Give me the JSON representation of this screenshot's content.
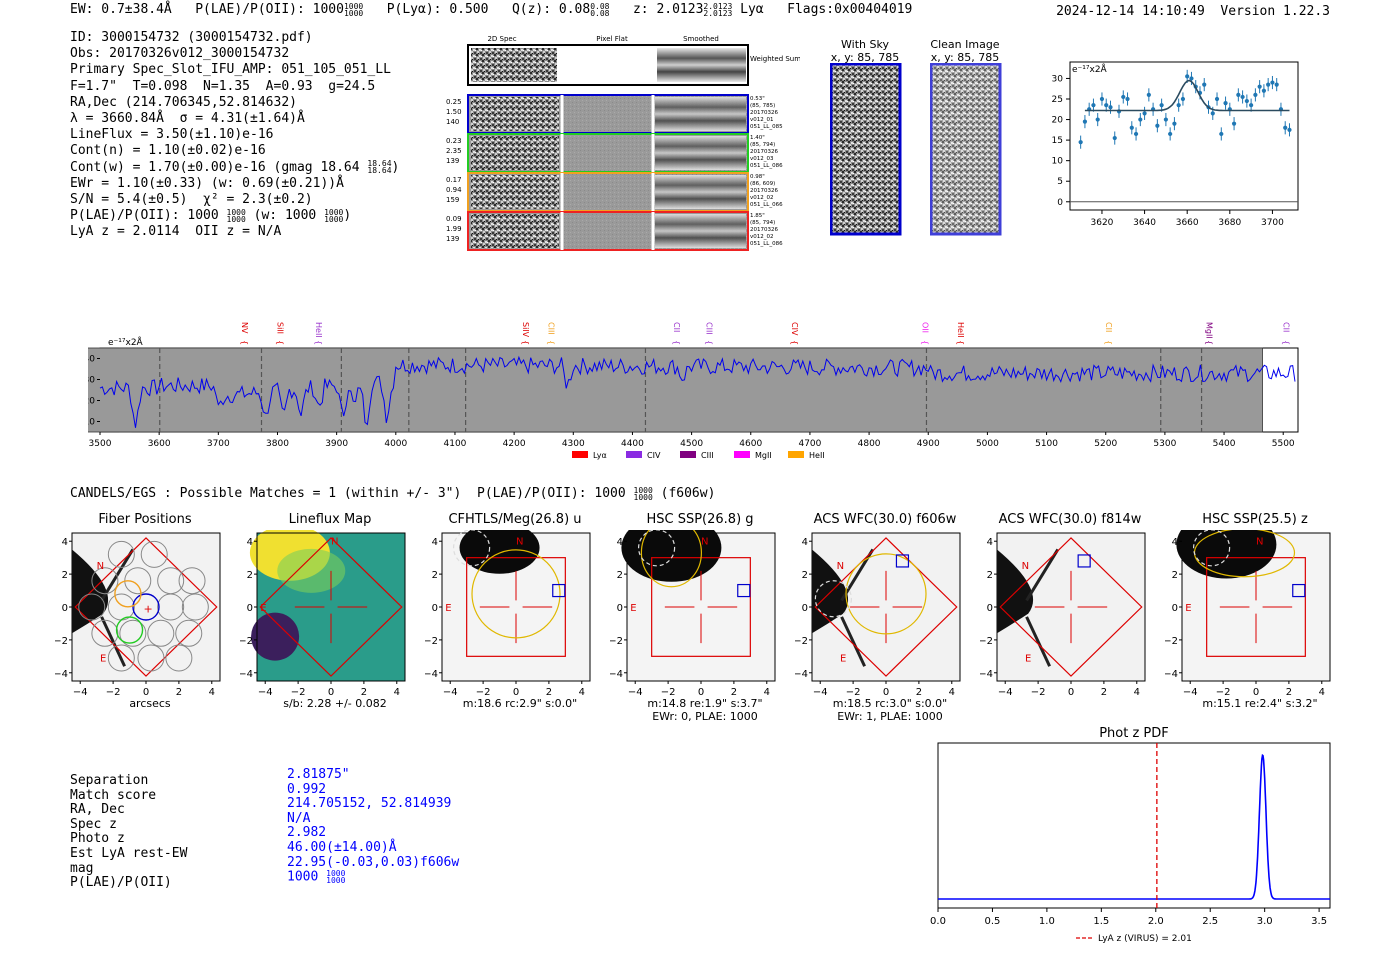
{
  "header": {
    "left": "EW: 0.7±38.4Å   P(LAE)/P(OII): 1000   P(Lyα): 0.500   Q(z): 0.08   z: 2.0123   Lyα   Flags:0x00404019",
    "ew": "EW: 0.7±38.4Å",
    "plae_label": "P(LAE)/P(OII): 1000",
    "plae_frac_top": "1000",
    "plae_frac_bot": "1000",
    "plya": "P(Lyα): 0.500",
    "qz_label": "Q(z): 0.08",
    "qz_top": "0.08",
    "qz_bot": "0.08",
    "z_label": "z: 2.0123",
    "z_top": "2.0123",
    "z_bot": "2.0123",
    "line": "Lyα",
    "flags": "Flags:0x00404019",
    "right": "2024-12-14 14:10:49  Version 1.22.3"
  },
  "info": {
    "id": "ID: 3000154732 (3000154732.pdf)",
    "obs": "Obs: 20170326v012_3000154732",
    "primary": "Primary Spec_Slot_IFU_AMP: 051_105_051_LL",
    "fiber": "F=1.7\"  T=0.098  N=1.35  A=0.93  g=24.5",
    "radec": "RA,Dec (214.706345,52.814632)",
    "lambda": "λ = 3660.84Å  σ = 4.31(±1.64)Å",
    "lineflux": "LineFlux = 3.50(±1.10)e-16",
    "contn": "Cont(n) = 1.10(±0.02)e-16",
    "contw": "Cont(w) = 1.70(±0.00)e-16 (gmag 18.64",
    "contw_top": "18.64",
    "contw_bot": "18.64",
    "ewr": "EWr = 1.10(±0.33) (w: 0.69(±0.21))Å",
    "sn": "S/N = 5.4(±0.5)  χ² = 2.3(±0.2)",
    "plae": "P(LAE)/P(OII): 1000",
    "plae_top": "1000",
    "plae_bot": "1000",
    "plae_w": "(w: 1000",
    "plae_w_top": "1000",
    "plae_w_bot": "1000",
    "lyaz": "LyA z = 2.0114  OII z = N/A"
  },
  "cutout_2d": {
    "col_titles": [
      "2D Spec",
      "Pixel Flat",
      "Smoothed"
    ],
    "weighted_label": "Weighted Sum",
    "rows": [
      {
        "color": "#0000cc",
        "left": [
          "0.25",
          "1.50",
          "140"
        ],
        "right": [
          "0.53\"",
          "(85, 785)",
          "20170326",
          "v012_01",
          "051_LL_085"
        ]
      },
      {
        "color": "#22cc22",
        "left": [
          "0.23",
          "2.35",
          "139"
        ],
        "right": [
          "1.40\"",
          "(85, 794)",
          "20170326",
          "v012_03",
          "051_LL_086"
        ]
      },
      {
        "color": "#f0a020",
        "left": [
          "0.17",
          "0.94",
          "159"
        ],
        "right": [
          "0.98\"",
          "(86, 609)",
          "20170326",
          "v012_02",
          "051_LL_066"
        ]
      },
      {
        "color": "#ee2222",
        "left": [
          "0.09",
          "1.99",
          "139"
        ],
        "right": [
          "1.85\"",
          "(85, 794)",
          "20170326",
          "v012_02",
          "051_LL_086"
        ]
      }
    ]
  },
  "with_sky": {
    "title": "With Sky",
    "sub": "x, y: 85, 785"
  },
  "clean_image": {
    "title": "Clean Image",
    "sub": "x, y: 85, 785"
  },
  "panels": {
    "fiber": {
      "title": "Fiber Positions",
      "caption": "arcsecs"
    },
    "lineflux": {
      "title": "Lineflux Map",
      "caption": "s/b: 2.28 +/- 0.082"
    },
    "cfhtls": {
      "title": "CFHTLS/Meg(26.8) u",
      "caption": "m:18.6 rc:2.9\"  s:0.0\""
    },
    "hsc_g": {
      "title": "HSC SSP(26.8) g",
      "caption": "m:14.8  re:1.9\"  s:3.7\"",
      "caption2": "EWr: 0, PLAE: 1000"
    },
    "acs_606": {
      "title": "ACS WFC(30.0) f606w",
      "caption": "m:18.5 rc:3.0\"  s:0.0\"",
      "caption2": "EWr: 1, PLAE: 1000"
    },
    "acs_814": {
      "title": "ACS WFC(30.0) f814w",
      "caption": ""
    },
    "hsc_z": {
      "title": "HSC SSP(25.5) z",
      "caption": "m:15.1  re:2.4\"  s:3.2\""
    },
    "axis_ticks": [
      "4",
      "2",
      "0",
      "−2",
      "−4"
    ],
    "x_ticks": [
      "−4",
      "−2",
      "0",
      "2",
      "4"
    ],
    "compass_n": "N",
    "compass_e": "E"
  },
  "match": {
    "header": "CANDELS/EGS : Possible Matches = 1 (within +/- 3\")  P(LAE)/P(OII): 1000",
    "header_top": "1000",
    "header_bot": "1000",
    "header_tail": "(f606w)",
    "labels": [
      "Separation",
      "Match score",
      "RA, Dec",
      "Spec z",
      "Photo z",
      "Est LyA rest-EW",
      "mag",
      "P(LAE)/P(OII)"
    ],
    "values": [
      "2.81875\"",
      "0.992",
      "214.705152, 52.814939",
      "N/A",
      "2.982",
      "46.00(±14.00)Å",
      "22.95(-0.03,0.03)f606w",
      "1000"
    ],
    "plae_top": "1000",
    "plae_bot": "1000"
  },
  "colors": {
    "spectrum": "#0000ee",
    "fit": "#2b4b5f",
    "points": "#1f77b4",
    "lya_band": "#b8b800",
    "pdf_line": "#0000ff",
    "pdf_vline": "#dd0000"
  },
  "chart_data": [
    {
      "type": "scatter",
      "unit_label": "e⁻¹⁷x2Å",
      "xlim": [
        3605,
        3712
      ],
      "ylim": [
        -2,
        34
      ],
      "x_ticks": [
        3620,
        3640,
        3660,
        3680,
        3700
      ],
      "y_ticks": [
        0,
        5,
        10,
        15,
        20,
        25,
        30
      ],
      "fit_baseline": 22.2,
      "fit_peak": 29.5,
      "fit_center": 3660.84,
      "fit_sigma": 4.31,
      "x": [
        3610,
        3612,
        3614,
        3616,
        3618,
        3620,
        3622,
        3624,
        3626,
        3628,
        3630,
        3632,
        3634,
        3636,
        3638,
        3640,
        3642,
        3644,
        3646,
        3648,
        3650,
        3652,
        3654,
        3656,
        3658,
        3660,
        3662,
        3664,
        3666,
        3668,
        3670,
        3672,
        3674,
        3676,
        3678,
        3680,
        3682,
        3684,
        3686,
        3688,
        3690,
        3692,
        3694,
        3696,
        3698,
        3700,
        3702,
        3704,
        3706,
        3708
      ],
      "y": [
        14.5,
        19.5,
        22.5,
        23.5,
        20.0,
        25.0,
        23.5,
        23.0,
        15.5,
        22.0,
        25.5,
        25.0,
        18.0,
        16.5,
        20.0,
        21.5,
        26.0,
        22.5,
        18.5,
        23.5,
        20.0,
        16.5,
        19.0,
        23.5,
        25.0,
        30.5,
        30.0,
        28.0,
        26.5,
        28.5,
        23.0,
        21.5,
        25.0,
        16.5,
        24.0,
        22.5,
        19.0,
        26.0,
        25.5,
        24.5,
        23.5,
        26.0,
        28.0,
        27.0,
        28.5,
        29.0,
        28.5,
        22.5,
        18.0,
        17.5
      ]
    },
    {
      "type": "line",
      "unit_label": "e⁻¹⁷x2Å",
      "xlim": [
        3500,
        5525
      ],
      "ylim": [
        5,
        45
      ],
      "x_ticks": [
        3500,
        3600,
        3700,
        3800,
        3900,
        4000,
        4100,
        4200,
        4300,
        4400,
        4500,
        4600,
        4700,
        4800,
        4900,
        5000,
        5100,
        5200,
        5300,
        5400,
        5500
      ],
      "y_ticks": [
        10,
        20,
        30,
        40
      ],
      "lya_band": [
        3615,
        3708
      ],
      "lya_center": 3660.84,
      "masked_bands": [
        [
          3533,
          3553
        ],
        [
          3455.5,
          5465
        ]
      ],
      "dashed_lines": [
        3601,
        3773,
        3908,
        4022,
        4118,
        4422,
        4897,
        5293,
        5362
      ],
      "line_ids": [
        {
          "name": "NV",
          "x": 3735,
          "color": "#dd0000"
        },
        {
          "name": "SiII",
          "x": 3795,
          "color": "#dd0000"
        },
        {
          "name": "HeII",
          "x": 3860,
          "color": "#9933cc"
        },
        {
          "name": "SiIV",
          "x": 4210,
          "color": "#dd0000"
        },
        {
          "name": "CIII",
          "x": 4253,
          "color": "#f0a020"
        },
        {
          "name": "CII",
          "x": 4465,
          "color": "#9933cc"
        },
        {
          "name": "CIII",
          "x": 4520,
          "color": "#9933cc"
        },
        {
          "name": "CIV",
          "x": 4665,
          "color": "#dd0000"
        },
        {
          "name": "OII",
          "x": 4885,
          "color": "#ee22ee"
        },
        {
          "name": "HeII",
          "x": 4945,
          "color": "#dd0000"
        },
        {
          "name": "CII",
          "x": 5195,
          "color": "#f0a020"
        },
        {
          "name": "MgII",
          "x": 5365,
          "color": "#800080"
        },
        {
          "name": "CII",
          "x": 5495,
          "color": "#9933cc"
        }
      ],
      "legend": [
        {
          "name": "Lyα",
          "color": "#ff0000"
        },
        {
          "name": "CIV",
          "color": "#8a2be2"
        },
        {
          "name": "CIII",
          "color": "#800080"
        },
        {
          "name": "MgII",
          "color": "#ff00ff"
        },
        {
          "name": "HeII",
          "color": "#ffa500"
        }
      ]
    },
    {
      "type": "line",
      "title": "Phot z PDF",
      "xlim": [
        0,
        3.6
      ],
      "x_ticks": [
        0.0,
        0.5,
        1.0,
        1.5,
        2.0,
        2.5,
        3.0,
        3.5
      ],
      "x_tick_labels": [
        "0.0",
        "0.5",
        "1.0",
        "1.5",
        "2.0",
        "2.5",
        "3.0",
        "3.5"
      ],
      "peak_x": 2.982,
      "peak_width": 0.03,
      "vline_x": 2.01,
      "legend": "LyA z (VIRUS) = 2.01"
    }
  ]
}
